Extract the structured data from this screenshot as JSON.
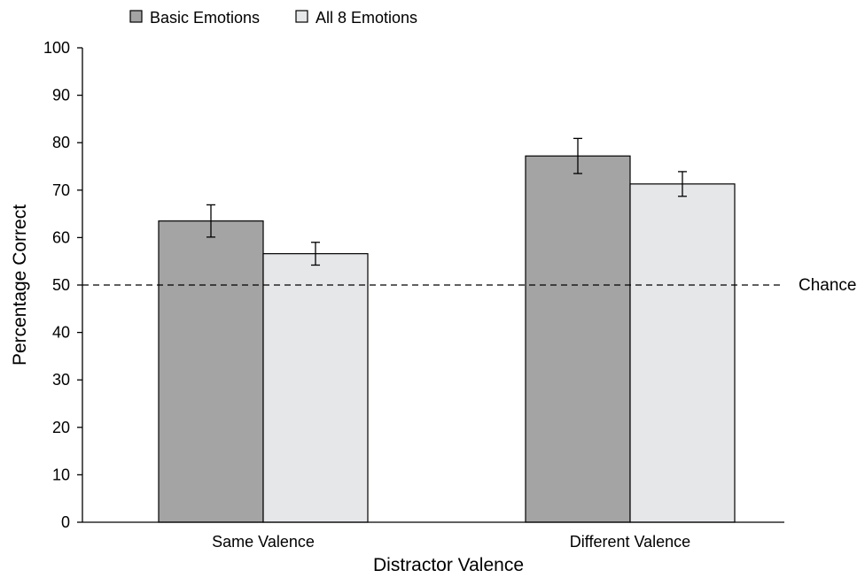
{
  "chart_data": {
    "type": "bar",
    "title": "",
    "xlabel": "Distractor Valence",
    "ylabel": "Percentage Correct",
    "categories": [
      "Same Valence",
      "Different Valence"
    ],
    "series": [
      {
        "name": "Basic Emotions",
        "color": "#a4a4a4",
        "values": [
          63.5,
          77.2
        ],
        "errors": [
          3.4,
          3.7
        ]
      },
      {
        "name": "All 8 Emotions",
        "color": "#e6e7e9",
        "values": [
          56.6,
          71.3
        ],
        "errors": [
          2.4,
          2.6
        ]
      }
    ],
    "ylim": [
      0,
      100
    ],
    "yticks": [
      "0",
      "10",
      "20",
      "30",
      "40",
      "50",
      "60",
      "70",
      "80",
      "90",
      "100"
    ],
    "grid": false,
    "legend_position": "top-left",
    "reference_line": {
      "value": 50,
      "label": "Chance",
      "style": "dashed"
    }
  }
}
